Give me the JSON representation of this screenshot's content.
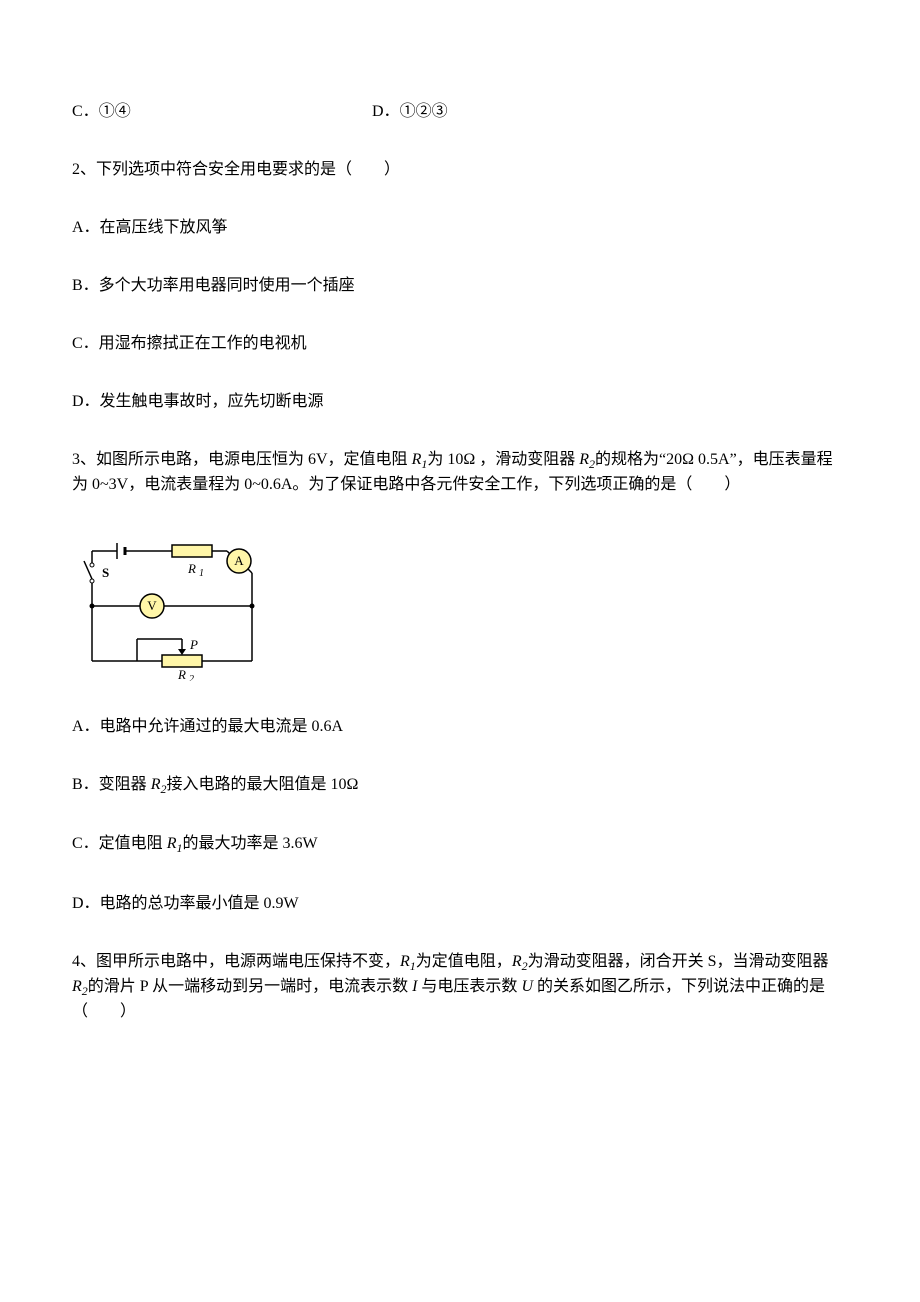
{
  "q1_tail": {
    "option_c_label": "C．",
    "option_c_text": "①④",
    "option_d_label": "D．",
    "option_d_text": "①②③"
  },
  "q2": {
    "stem": "2、下列选项中符合安全用电要求的是（　　）",
    "option_a": "A．在高压线下放风筝",
    "option_b": "B．多个大功率用电器同时使用一个插座",
    "option_c": "C．用湿布擦拭正在工作的电视机",
    "option_d": "D．发生触电事故时，应先切断电源"
  },
  "q3": {
    "stem_part1": "3、如图所示电路，电源电压恒为 6V，定值电阻 ",
    "stem_r1": "R",
    "stem_r1_sub": "1",
    "stem_part2": "为 10Ω ，滑动变阻器 ",
    "stem_r2": "R",
    "stem_r2_sub": "2",
    "stem_part3": "的规格为“20Ω  0.5A”，电压表量程为 0~3V，电流表量程为 0~0.6A。为了保证电路中各元件安全工作，下列选项正确的是（　　）",
    "option_a": "A．电路中允许通过的最大电流是 0.6A",
    "option_b_part1": "B．变阻器 ",
    "option_b_r": "R",
    "option_b_sub": "2",
    "option_b_part2": "接入电路的最大阻值是 10Ω",
    "option_c_part1": "C．定值电阻 ",
    "option_c_r": "R",
    "option_c_sub": "1",
    "option_c_part2": "的最大功率是 3.6W",
    "option_d": "D．电路的总功率最小值是 0.9W"
  },
  "q4": {
    "stem_part1": "4、图甲所示电路中，电源两端电压保持不变，",
    "stem_r1": "R",
    "stem_r1_sub": "1",
    "stem_part2": "为定值电阻，",
    "stem_r2": "R",
    "stem_r2_sub": "2",
    "stem_part3": "为滑动变阻器，闭合开关 S，当滑动变阻器 ",
    "stem_r2b": "R",
    "stem_r2b_sub": "2",
    "stem_part4": "的滑片 P 从一端移动到另一端时，电流表示数 ",
    "stem_i": "I",
    "stem_part5": " 与电压表示数 ",
    "stem_u": "U",
    "stem_part6": " 的关系如图乙所示，下列说法中正确的是（　　）"
  },
  "diagram": {
    "width": 190,
    "height": 150,
    "stroke_color": "#000000",
    "stroke_width": 1.5,
    "resistor_fill": "#fff6a8",
    "background": "#ffffff",
    "label_s": "S",
    "label_r1": "R",
    "label_r1_sub": "1",
    "label_r2": "R",
    "label_r2_sub": "2",
    "label_a": "A",
    "label_v": "V",
    "label_p": "P",
    "label_fontsize": 13,
    "sub_fontsize": 10
  }
}
